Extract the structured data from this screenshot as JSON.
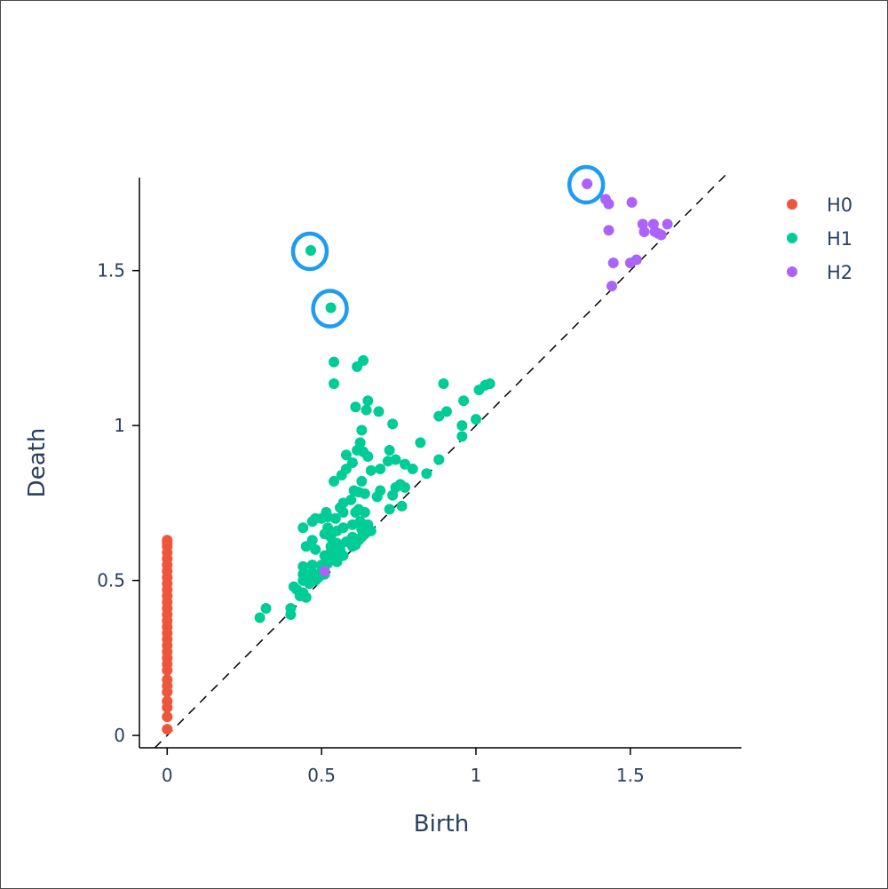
{
  "chart_data": {
    "type": "scatter",
    "title": "",
    "xlabel": "Birth",
    "ylabel": "Death",
    "xlim": [
      -0.09,
      1.86
    ],
    "ylim": [
      -0.04,
      1.8
    ],
    "xticks": [
      0,
      0.5,
      1,
      1.5
    ],
    "xtick_labels": [
      "0",
      "0.5",
      "1",
      "1.5"
    ],
    "yticks": [
      0,
      0.5,
      1,
      1.5
    ],
    "ytick_labels": [
      "0",
      "0.5",
      "1",
      "1.5"
    ],
    "grid": false,
    "legend_position": "top-right",
    "diagonal": {
      "from": [
        -0.04,
        -0.04
      ],
      "to": [
        1.82,
        1.82
      ],
      "style": "dashed",
      "color": "#000000"
    },
    "series": [
      {
        "name": "H0",
        "color": "#ef553b",
        "points": [
          [
            0,
            0.02
          ],
          [
            0,
            0.06
          ],
          [
            0,
            0.09
          ],
          [
            0,
            0.11
          ],
          [
            0,
            0.14
          ],
          [
            0,
            0.16
          ],
          [
            0,
            0.18
          ],
          [
            0,
            0.21
          ],
          [
            0,
            0.23
          ],
          [
            0,
            0.25
          ],
          [
            0,
            0.27
          ],
          [
            0,
            0.29
          ],
          [
            0,
            0.31
          ],
          [
            0,
            0.33
          ],
          [
            0,
            0.35
          ],
          [
            0,
            0.37
          ],
          [
            0,
            0.39
          ],
          [
            0,
            0.41
          ],
          [
            0,
            0.43
          ],
          [
            0,
            0.45
          ],
          [
            0,
            0.47
          ],
          [
            0,
            0.49
          ],
          [
            0,
            0.51
          ],
          [
            0,
            0.53
          ],
          [
            0,
            0.55
          ],
          [
            0,
            0.57
          ],
          [
            0,
            0.59
          ],
          [
            0,
            0.61
          ],
          [
            0,
            0.62
          ],
          [
            0,
            0.63
          ]
        ]
      },
      {
        "name": "H1",
        "color": "#00cc96",
        "points": [
          [
            0.465,
            1.565
          ],
          [
            0.53,
            1.38
          ],
          [
            0.54,
            1.205
          ],
          [
            0.615,
            1.19
          ],
          [
            0.635,
            1.21
          ],
          [
            0.54,
            1.135
          ],
          [
            0.895,
            1.135
          ],
          [
            1.045,
            1.135
          ],
          [
            1.03,
            1.13
          ],
          [
            1.01,
            1.115
          ],
          [
            0.61,
            1.06
          ],
          [
            0.645,
            1.05
          ],
          [
            0.65,
            1.08
          ],
          [
            0.685,
            1.045
          ],
          [
            0.88,
            1.03
          ],
          [
            0.905,
            1.045
          ],
          [
            0.96,
            1.08
          ],
          [
            1.0,
            1.02
          ],
          [
            0.955,
            1.0
          ],
          [
            0.73,
            1.005
          ],
          [
            0.63,
            0.985
          ],
          [
            0.625,
            0.945
          ],
          [
            0.82,
            0.945
          ],
          [
            0.955,
            0.965
          ],
          [
            0.615,
            0.92
          ],
          [
            0.635,
            0.915
          ],
          [
            0.58,
            0.905
          ],
          [
            0.6,
            0.88
          ],
          [
            0.65,
            0.9
          ],
          [
            0.72,
            0.92
          ],
          [
            0.715,
            0.885
          ],
          [
            0.74,
            0.89
          ],
          [
            0.77,
            0.875
          ],
          [
            0.69,
            0.86
          ],
          [
            0.66,
            0.855
          ],
          [
            0.58,
            0.86
          ],
          [
            0.565,
            0.84
          ],
          [
            0.54,
            0.82
          ],
          [
            0.63,
            0.82
          ],
          [
            0.795,
            0.86
          ],
          [
            0.88,
            0.89
          ],
          [
            0.84,
            0.845
          ],
          [
            0.605,
            0.79
          ],
          [
            0.62,
            0.785
          ],
          [
            0.64,
            0.78
          ],
          [
            0.69,
            0.79
          ],
          [
            0.68,
            0.77
          ],
          [
            0.74,
            0.8
          ],
          [
            0.755,
            0.81
          ],
          [
            0.77,
            0.8
          ],
          [
            0.73,
            0.775
          ],
          [
            0.595,
            0.76
          ],
          [
            0.57,
            0.75
          ],
          [
            0.56,
            0.735
          ],
          [
            0.515,
            0.72
          ],
          [
            0.52,
            0.705
          ],
          [
            0.545,
            0.7
          ],
          [
            0.57,
            0.72
          ],
          [
            0.48,
            0.7
          ],
          [
            0.47,
            0.69
          ],
          [
            0.5,
            0.7
          ],
          [
            0.61,
            0.72
          ],
          [
            0.62,
            0.73
          ],
          [
            0.64,
            0.72
          ],
          [
            0.72,
            0.73
          ],
          [
            0.76,
            0.74
          ],
          [
            0.44,
            0.67
          ],
          [
            0.52,
            0.67
          ],
          [
            0.55,
            0.66
          ],
          [
            0.57,
            0.67
          ],
          [
            0.6,
            0.68
          ],
          [
            0.625,
            0.69
          ],
          [
            0.63,
            0.665
          ],
          [
            0.65,
            0.68
          ],
          [
            0.66,
            0.66
          ],
          [
            0.6,
            0.64
          ],
          [
            0.53,
            0.64
          ],
          [
            0.51,
            0.65
          ],
          [
            0.47,
            0.63
          ],
          [
            0.45,
            0.61
          ],
          [
            0.48,
            0.6
          ],
          [
            0.53,
            0.61
          ],
          [
            0.55,
            0.62
          ],
          [
            0.58,
            0.625
          ],
          [
            0.61,
            0.615
          ],
          [
            0.62,
            0.63
          ],
          [
            0.63,
            0.64
          ],
          [
            0.64,
            0.65
          ],
          [
            0.655,
            0.66
          ],
          [
            0.6,
            0.61
          ],
          [
            0.56,
            0.6
          ],
          [
            0.53,
            0.59
          ],
          [
            0.51,
            0.58
          ],
          [
            0.54,
            0.57
          ],
          [
            0.55,
            0.56
          ],
          [
            0.52,
            0.555
          ],
          [
            0.5,
            0.55
          ],
          [
            0.47,
            0.55
          ],
          [
            0.44,
            0.545
          ],
          [
            0.44,
            0.52
          ],
          [
            0.44,
            0.5
          ],
          [
            0.46,
            0.52
          ],
          [
            0.48,
            0.52
          ],
          [
            0.5,
            0.53
          ],
          [
            0.51,
            0.52
          ],
          [
            0.48,
            0.5
          ],
          [
            0.46,
            0.49
          ],
          [
            0.44,
            0.46
          ],
          [
            0.42,
            0.47
          ],
          [
            0.41,
            0.48
          ],
          [
            0.43,
            0.45
          ],
          [
            0.45,
            0.445
          ],
          [
            0.47,
            0.5
          ],
          [
            0.49,
            0.51
          ],
          [
            0.53,
            0.57
          ],
          [
            0.57,
            0.58
          ],
          [
            0.55,
            0.59
          ],
          [
            0.4,
            0.41
          ],
          [
            0.4,
            0.39
          ],
          [
            0.32,
            0.41
          ],
          [
            0.3,
            0.38
          ]
        ]
      },
      {
        "name": "H2",
        "color": "#ab63fa",
        "points": [
          [
            1.36,
            1.78
          ],
          [
            1.42,
            1.73
          ],
          [
            1.43,
            1.715
          ],
          [
            1.505,
            1.72
          ],
          [
            1.43,
            1.63
          ],
          [
            1.54,
            1.65
          ],
          [
            1.575,
            1.65
          ],
          [
            1.545,
            1.625
          ],
          [
            1.58,
            1.625
          ],
          [
            1.59,
            1.62
          ],
          [
            1.6,
            1.615
          ],
          [
            1.62,
            1.65
          ],
          [
            1.445,
            1.525
          ],
          [
            1.5,
            1.525
          ],
          [
            1.52,
            1.535
          ],
          [
            1.44,
            1.45
          ],
          [
            0.51,
            0.53
          ]
        ]
      }
    ],
    "highlighted_points": [
      [
        1.36,
        1.78
      ],
      [
        0.465,
        1.565
      ],
      [
        0.53,
        1.38
      ]
    ],
    "highlight_color": "#1f9cf0"
  }
}
